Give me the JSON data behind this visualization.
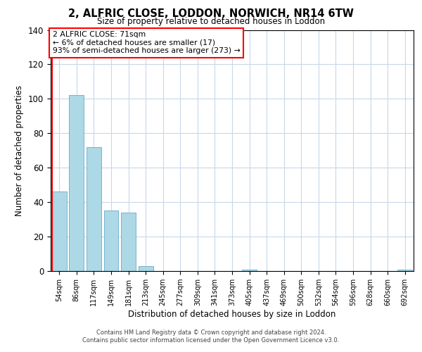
{
  "title": "2, ALFRIC CLOSE, LODDON, NORWICH, NR14 6TW",
  "subtitle": "Size of property relative to detached houses in Loddon",
  "xlabel": "Distribution of detached houses by size in Loddon",
  "ylabel": "Number of detached properties",
  "bar_labels": [
    "54sqm",
    "86sqm",
    "117sqm",
    "149sqm",
    "181sqm",
    "213sqm",
    "245sqm",
    "277sqm",
    "309sqm",
    "341sqm",
    "373sqm",
    "405sqm",
    "437sqm",
    "469sqm",
    "500sqm",
    "532sqm",
    "564sqm",
    "596sqm",
    "628sqm",
    "660sqm",
    "692sqm"
  ],
  "bar_values": [
    46,
    102,
    72,
    35,
    34,
    3,
    0,
    0,
    0,
    0,
    0,
    1,
    0,
    0,
    0,
    0,
    0,
    0,
    0,
    0,
    1
  ],
  "bar_color": "#add8e6",
  "bar_edge_color": "#7ab3cc",
  "ylim": [
    0,
    140
  ],
  "yticks": [
    0,
    20,
    40,
    60,
    80,
    100,
    120,
    140
  ],
  "annotation_title": "2 ALFRIC CLOSE: 71sqm",
  "annotation_line2": "← 6% of detached houses are smaller (17)",
  "annotation_line3": "93% of semi-detached houses are larger (273) →",
  "footer_line1": "Contains HM Land Registry data © Crown copyright and database right 2024.",
  "footer_line2": "Contains public sector information licensed under the Open Government Licence v3.0.",
  "background_color": "#ffffff",
  "grid_color": "#c8d8e8",
  "red_line_x": -0.5
}
